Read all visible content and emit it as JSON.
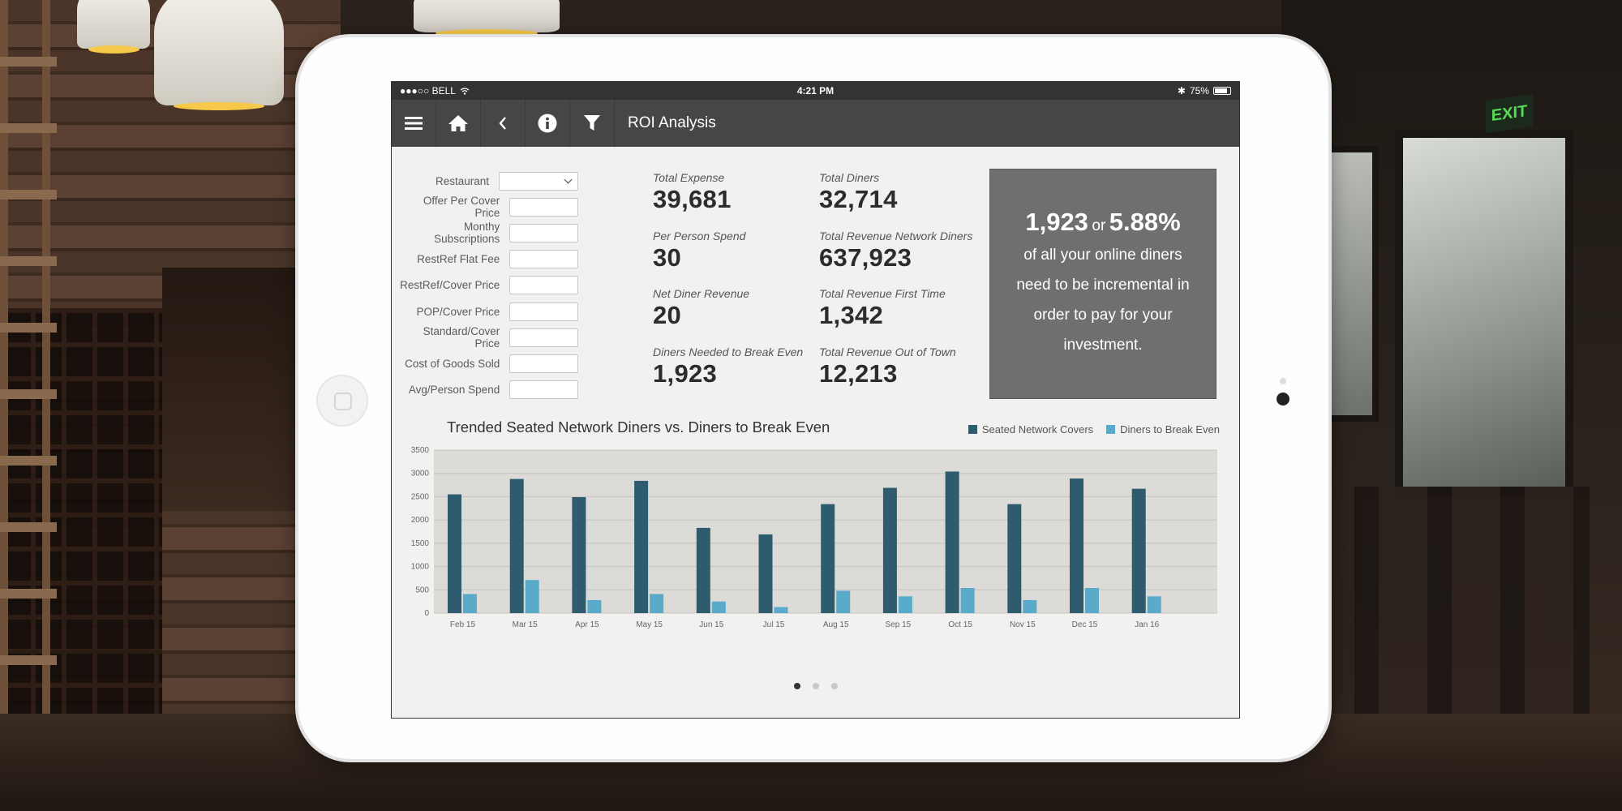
{
  "status_bar": {
    "carrier": "●●●○○ BELL",
    "time": "4:21 PM",
    "battery": "75%"
  },
  "toolbar": {
    "title": "ROI Analysis",
    "icons": [
      "menu-icon",
      "home-icon",
      "back-icon",
      "info-icon",
      "filter-icon"
    ]
  },
  "form": {
    "restaurant_label": "Restaurant",
    "restaurant_value": "",
    "fields": [
      {
        "label": "Offer Per Cover Price",
        "value": ""
      },
      {
        "label": "Monthy Subscriptions",
        "value": ""
      },
      {
        "label": "RestRef Flat Fee",
        "value": ""
      },
      {
        "label": "RestRef/Cover Price",
        "value": ""
      },
      {
        "label": "POP/Cover Price",
        "value": ""
      },
      {
        "label": "Standard/Cover Price",
        "value": ""
      },
      {
        "label": "Cost of Goods Sold",
        "value": ""
      },
      {
        "label": "Avg/Person Spend",
        "value": ""
      }
    ]
  },
  "metrics_left": [
    {
      "label": "Total Expense",
      "value": "39,681"
    },
    {
      "label": "Per Person Spend",
      "value": "30"
    },
    {
      "label": "Net Diner Revenue",
      "value": "20"
    },
    {
      "label": "Diners Needed to Break Even",
      "value": "1,923"
    }
  ],
  "metrics_right": [
    {
      "label": "Total Diners",
      "value": "32,714"
    },
    {
      "label": "Total Revenue Network Diners",
      "value": "637,923"
    },
    {
      "label": "Total Revenue First Time",
      "value": "1,342"
    },
    {
      "label": "Total Revenue Out of Town",
      "value": "12,213"
    }
  ],
  "callout": {
    "count": "1,923",
    "or": "or",
    "percent": "5.88%",
    "message": "of all your online diners need to be incremental in order to pay for your investment."
  },
  "colors": {
    "seated": "#2e5b6e",
    "breakeven": "#5aaac9",
    "plot_bg": "#dcdbd8",
    "toolbar": "#464646"
  },
  "pager": {
    "pages": 3,
    "active": 0
  },
  "chart_data": {
    "type": "bar",
    "title": "Trended Seated Network Diners vs. Diners to Break Even",
    "xlabel": "",
    "ylabel": "",
    "categories": [
      "Feb 15",
      "Mar 15",
      "Apr 15",
      "May 15",
      "Jun 15",
      "Jul 15",
      "Aug 15",
      "Sep 15",
      "Oct 15",
      "Nov 15",
      "Dec 15",
      "Jan 16"
    ],
    "series": [
      {
        "name": "Seated Network Covers",
        "values": [
          2550,
          2880,
          2490,
          2840,
          1830,
          1690,
          2340,
          2690,
          3040,
          2340,
          2890,
          2670
        ]
      },
      {
        "name": "Diners to Break Even",
        "values": [
          410,
          710,
          280,
          410,
          250,
          130,
          480,
          360,
          540,
          280,
          540,
          360
        ]
      }
    ],
    "ylim": [
      0,
      3500
    ],
    "yticks": [
      0,
      500,
      1000,
      1500,
      2000,
      2500,
      3000,
      3500
    ],
    "grid": true,
    "legend_position": "top-right"
  }
}
